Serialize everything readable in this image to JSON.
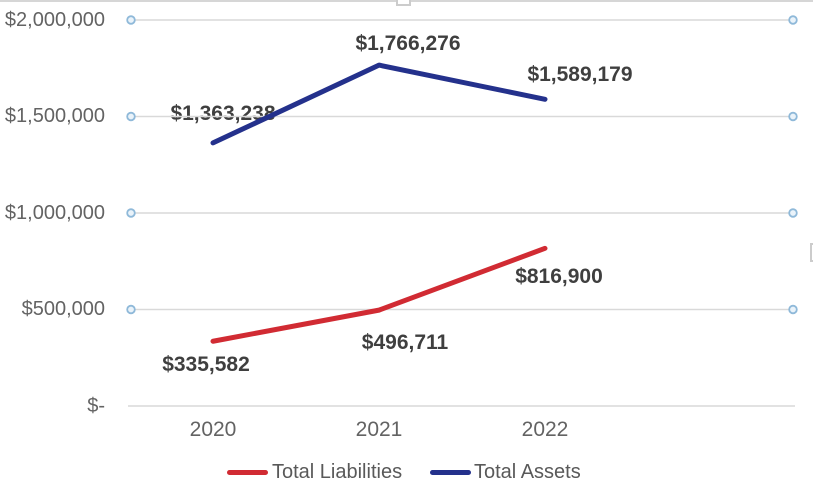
{
  "chart_data": {
    "type": "line",
    "title": "",
    "xlabel": "",
    "ylabel": "",
    "categories": [
      "2020",
      "2021",
      "2022"
    ],
    "series": [
      {
        "name": "Total Liabilities",
        "color": "#d12b33",
        "values": [
          335582,
          496711,
          816900
        ],
        "data_labels": [
          "$335,582",
          "$496,711",
          "$816,900"
        ]
      },
      {
        "name": "Total Assets",
        "color": "#24318c",
        "values": [
          1363238,
          1766276,
          1589179
        ],
        "data_labels": [
          "$1,363,238",
          "$1,766,276",
          "$1,589,179"
        ]
      }
    ],
    "ylim": [
      0,
      2000000
    ],
    "y_ticks": [
      {
        "label": "$2,000,000",
        "value": 2000000
      },
      {
        "label": "$1,500,000",
        "value": 1500000
      },
      {
        "label": "$1,000,000",
        "value": 1000000
      },
      {
        "label": "$500,000",
        "value": 500000
      },
      {
        "label": "$-",
        "value": 0
      }
    ],
    "grid": true,
    "legend_position": "bottom",
    "colors": {
      "gridline": "#d9d9d9",
      "tick_marker_stroke": "#8fb9d9",
      "tick_marker_fill": "#eaf3fa",
      "axis_text": "#636363",
      "data_label_text": "#3f3f3f",
      "legend_text": "#595959",
      "selection_chrome": "#cccccc"
    }
  }
}
